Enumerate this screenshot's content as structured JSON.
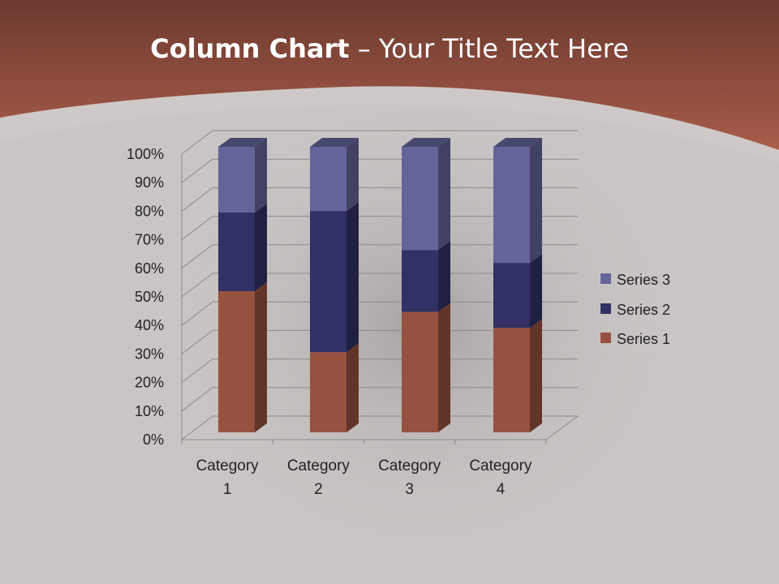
{
  "slide": {
    "title_bold": "Column Chart",
    "title_rest": " – Your Title Text Here"
  },
  "chart_data": {
    "type": "bar",
    "stacking": "percent",
    "three_d": true,
    "categories": [
      "Category 1",
      "Category 2",
      "Category 3",
      "Category 4"
    ],
    "series": [
      {
        "name": "Series 1",
        "values": [
          4.3,
          2.5,
          3.5,
          4.5
        ],
        "color": "#96523f"
      },
      {
        "name": "Series 2",
        "values": [
          2.4,
          4.4,
          1.8,
          2.8
        ],
        "color": "#313166"
      },
      {
        "name": "Series 3",
        "values": [
          2,
          2,
          3,
          5
        ],
        "color": "#64649a"
      }
    ],
    "y_ticks": [
      "0%",
      "10%",
      "20%",
      "30%",
      "40%",
      "50%",
      "60%",
      "70%",
      "80%",
      "90%",
      "100%"
    ],
    "ylim": [
      0,
      100
    ],
    "grid": true,
    "legend": "right"
  }
}
